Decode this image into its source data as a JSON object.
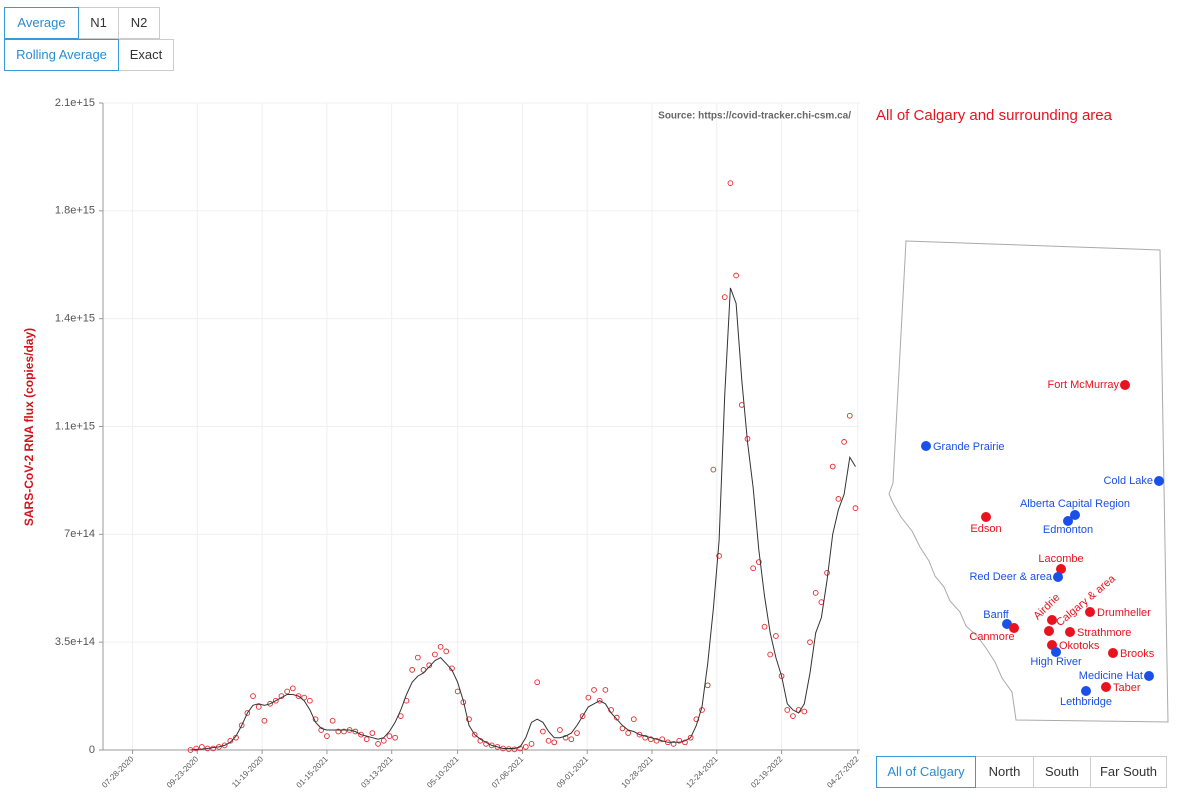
{
  "controls": {
    "signal": [
      "Average",
      "N1",
      "N2"
    ],
    "smoothing": [
      "Rolling Average",
      "Exact"
    ],
    "region": [
      "All of Calgary",
      "North",
      "South",
      "Far South"
    ]
  },
  "chart_data": {
    "type": "scatter",
    "source": "Source: https://covid-tracker.chi-csm.ca/",
    "subtitle": "All of Calgary and surrounding area",
    "y_label": "SARS-CoV-2 RNA flux (copies/day)",
    "xlim": [
      "07-02-2020",
      "04-29-2022"
    ],
    "xticks": [
      "07-28-2020",
      "09-23-2020",
      "11-19-2020",
      "01-15-2021",
      "03-13-2021",
      "05-10-2021",
      "07-06-2021",
      "09-01-2021",
      "10-28-2021",
      "12-24-2021",
      "02-19-2022",
      "04-27-2022"
    ],
    "ylim": [
      0,
      2100000000000000.0
    ],
    "yticks": [
      0,
      {
        "value": 350000000000000.0,
        "label": "3.5e+14"
      },
      {
        "value": 700000000000000.0,
        "label": "7e+14"
      },
      {
        "value": 1050000000000000.0,
        "label": "1.1e+15"
      },
      {
        "value": 1400000000000000.0,
        "label": "1.4e+15"
      },
      {
        "value": 1750000000000000.0,
        "label": "1.8e+15"
      },
      {
        "value": 2100000000000000.0,
        "label": "2.1e+15"
      }
    ],
    "grid": true,
    "x": [
      "09-17-2020",
      "09-22-2020",
      "09-27-2020",
      "10-02-2020",
      "10-07-2020",
      "10-12-2020",
      "10-17-2020",
      "10-22-2020",
      "10-27-2020",
      "11-01-2020",
      "11-06-2020",
      "11-11-2020",
      "11-16-2020",
      "11-21-2020",
      "11-26-2020",
      "12-01-2020",
      "12-06-2020",
      "12-11-2020",
      "12-16-2020",
      "12-21-2020",
      "12-26-2020",
      "12-31-2020",
      "01-05-2021",
      "01-10-2021",
      "01-15-2021",
      "01-20-2021",
      "01-25-2021",
      "01-30-2021",
      "02-04-2021",
      "02-09-2021",
      "02-14-2021",
      "02-19-2021",
      "02-24-2021",
      "03-01-2021",
      "03-06-2021",
      "03-11-2021",
      "03-16-2021",
      "03-21-2021",
      "03-26-2021",
      "03-31-2021",
      "04-05-2021",
      "04-10-2021",
      "04-15-2021",
      "04-20-2021",
      "04-25-2021",
      "04-30-2021",
      "05-05-2021",
      "05-10-2021",
      "05-15-2021",
      "05-20-2021",
      "05-25-2021",
      "05-30-2021",
      "06-04-2021",
      "06-09-2021",
      "06-14-2021",
      "06-19-2021",
      "06-24-2021",
      "06-29-2021",
      "07-04-2021",
      "07-09-2021",
      "07-14-2021",
      "07-19-2021",
      "07-24-2021",
      "07-29-2021",
      "08-03-2021",
      "08-08-2021",
      "08-13-2021",
      "08-18-2021",
      "08-23-2021",
      "08-28-2021",
      "09-02-2021",
      "09-07-2021",
      "09-12-2021",
      "09-17-2021",
      "09-22-2021",
      "09-27-2021",
      "10-02-2021",
      "10-07-2021",
      "10-12-2021",
      "10-17-2021",
      "10-22-2021",
      "10-27-2021",
      "11-01-2021",
      "11-06-2021",
      "11-11-2021",
      "11-16-2021",
      "11-21-2021",
      "11-26-2021",
      "12-01-2021",
      "12-06-2021",
      "12-11-2021",
      "12-16-2021",
      "12-21-2021",
      "12-26-2021",
      "12-31-2021",
      "01-05-2022",
      "01-10-2022",
      "01-15-2022",
      "01-20-2022",
      "01-25-2022",
      "01-30-2022",
      "02-04-2022",
      "02-09-2022",
      "02-14-2022",
      "02-19-2022",
      "02-24-2022",
      "03-01-2022",
      "03-06-2022",
      "03-11-2022",
      "03-16-2022",
      "03-21-2022",
      "03-26-2022",
      "03-31-2022",
      "04-05-2022",
      "04-10-2022",
      "04-15-2022",
      "04-20-2022",
      "04-25-2022"
    ],
    "series": [
      {
        "type": "scatter",
        "color": "#e8262b",
        "values": [
          0,
          5000000000000.0,
          10000000000000.0,
          5000000000000.0,
          5000000000000.0,
          10000000000000.0,
          15000000000000.0,
          30000000000000.0,
          40000000000000.0,
          80000000000000.0,
          120000000000000.0,
          175000000000000.0,
          140000000000000.0,
          95000000000000.0,
          150000000000000.0,
          160000000000000.0,
          175000000000000.0,
          190000000000000.0,
          200000000000000.0,
          175000000000000.0,
          170000000000000.0,
          160000000000000.0,
          100000000000000.0,
          65000000000000.0,
          45000000000000.0,
          95000000000000.0,
          60000000000000.0,
          60000000000000.0,
          65000000000000.0,
          60000000000000.0,
          50000000000000.0,
          35000000000000.0,
          55000000000000.0,
          20000000000000.0,
          30000000000000.0,
          45000000000000.0,
          40000000000000.0,
          110000000000000.0,
          160000000000000.0,
          260000000000000.0,
          300000000000000.0,
          260000000000000.0,
          275000000000000.0,
          310000000000000.0,
          335000000000000.0,
          320000000000000.0,
          265000000000000.0,
          190000000000000.0,
          155000000000000.0,
          100000000000000.0,
          50000000000000.0,
          30000000000000.0,
          20000000000000.0,
          15000000000000.0,
          10000000000000.0,
          5000000000000.0,
          3000000000000.0,
          2000000000000.0,
          5000000000000.0,
          10000000000000.0,
          20000000000000.0,
          220000000000000.0,
          60000000000000.0,
          30000000000000.0,
          25000000000000.0,
          65000000000000.0,
          40000000000000.0,
          35000000000000.0,
          55000000000000.0,
          110000000000000.0,
          170000000000000.0,
          195000000000000.0,
          160000000000000.0,
          195000000000000.0,
          130000000000000.0,
          105000000000000.0,
          70000000000000.0,
          55000000000000.0,
          100000000000000.0,
          50000000000000.0,
          40000000000000.0,
          35000000000000.0,
          30000000000000.0,
          35000000000000.0,
          25000000000000.0,
          20000000000000.0,
          30000000000000.0,
          25000000000000.0,
          40000000000000.0,
          100000000000000.0,
          130000000000000.0,
          210000000000000.0,
          910000000000000.0,
          630000000000000.0,
          1470000000000000.0,
          1840000000000000.0,
          1540000000000000.0,
          1120000000000000.0,
          1010000000000000.0,
          590000000000000.0,
          610000000000000.0,
          400000000000000.0,
          310000000000000.0,
          370000000000000.0,
          240000000000000.0,
          130000000000000.0,
          110000000000000.0,
          130000000000000.0,
          125000000000000.0,
          350000000000000.0,
          510000000000000.0,
          480000000000000.0,
          575000000000000.0,
          920000000000000.0,
          815000000000000.0,
          1000000000000000.0,
          1085000000000000.0,
          785000000000000.0
        ]
      },
      {
        "type": "line",
        "color": "#333333",
        "values": [
          0,
          2000000000000.0,
          3000000000000.0,
          5000000000000.0,
          8000000000000.0,
          10000000000000.0,
          15000000000000.0,
          25000000000000.0,
          45000000000000.0,
          80000000000000.0,
          120000000000000.0,
          145000000000000.0,
          150000000000000.0,
          145000000000000.0,
          150000000000000.0,
          160000000000000.0,
          170000000000000.0,
          180000000000000.0,
          180000000000000.0,
          175000000000000.0,
          160000000000000.0,
          130000000000000.0,
          90000000000000.0,
          70000000000000.0,
          65000000000000.0,
          65000000000000.0,
          65000000000000.0,
          65000000000000.0,
          65000000000000.0,
          60000000000000.0,
          50000000000000.0,
          45000000000000.0,
          40000000000000.0,
          35000000000000.0,
          40000000000000.0,
          60000000000000.0,
          90000000000000.0,
          130000000000000.0,
          180000000000000.0,
          220000000000000.0,
          240000000000000.0,
          250000000000000.0,
          270000000000000.0,
          290000000000000.0,
          300000000000000.0,
          280000000000000.0,
          260000000000000.0,
          220000000000000.0,
          160000000000000.0,
          80000000000000.0,
          50000000000000.0,
          35000000000000.0,
          25000000000000.0,
          15000000000000.0,
          10000000000000.0,
          5000000000000.0,
          5000000000000.0,
          5000000000000.0,
          10000000000000.0,
          40000000000000.0,
          90000000000000.0,
          100000000000000.0,
          90000000000000.0,
          60000000000000.0,
          40000000000000.0,
          40000000000000.0,
          45000000000000.0,
          55000000000000.0,
          80000000000000.0,
          110000000000000.0,
          140000000000000.0,
          150000000000000.0,
          160000000000000.0,
          150000000000000.0,
          120000000000000.0,
          100000000000000.0,
          80000000000000.0,
          65000000000000.0,
          60000000000000.0,
          50000000000000.0,
          45000000000000.0,
          40000000000000.0,
          35000000000000.0,
          30000000000000.0,
          25000000000000.0,
          25000000000000.0,
          25000000000000.0,
          30000000000000.0,
          40000000000000.0,
          80000000000000.0,
          140000000000000.0,
          280000000000000.0,
          460000000000000.0,
          680000000000000.0,
          1150000000000000.0,
          1500000000000000.0,
          1450000000000000.0,
          1200000000000000.0,
          1000000000000000.0,
          850000000000000.0,
          650000000000000.0,
          500000000000000.0,
          380000000000000.0,
          300000000000000.0,
          240000000000000.0,
          150000000000000.0,
          130000000000000.0,
          120000000000000.0,
          150000000000000.0,
          250000000000000.0,
          380000000000000.0,
          430000000000000.0,
          550000000000000.0,
          700000000000000.0,
          780000000000000.0,
          830000000000000.0,
          950000000000000.0,
          920000000000000.0
        ]
      }
    ]
  },
  "map": {
    "sites": [
      {
        "name": "Fort McMurray",
        "color": "#e8131f"
      },
      {
        "name": "Grande Prairie",
        "color": "#1a4fe8"
      },
      {
        "name": "Cold Lake",
        "color": "#1a4fe8"
      },
      {
        "name": "Alberta Capital Region",
        "color": "#1a4fe8"
      },
      {
        "name": "Edmonton",
        "color": "#1a4fe8"
      },
      {
        "name": "Edson",
        "color": "#e8131f"
      },
      {
        "name": "Lacombe",
        "color": "#e8131f"
      },
      {
        "name": "Red Deer & area",
        "color": "#1a4fe8"
      },
      {
        "name": "Banff",
        "color": "#1a4fe8"
      },
      {
        "name": "Canmore",
        "color": "#e8131f"
      },
      {
        "name": "Airdrie",
        "color": "#e8131f"
      },
      {
        "name": "Calgary & area",
        "color": "#e8131f"
      },
      {
        "name": "Drumheller",
        "color": "#e8131f"
      },
      {
        "name": "Strathmore",
        "color": "#e8131f"
      },
      {
        "name": "Okotoks",
        "color": "#e8131f"
      },
      {
        "name": "High River",
        "color": "#1a4fe8"
      },
      {
        "name": "Brooks",
        "color": "#e8131f"
      },
      {
        "name": "Medicine Hat",
        "color": "#1a4fe8"
      },
      {
        "name": "Taber",
        "color": "#e8131f"
      },
      {
        "name": "Lethbridge",
        "color": "#1a4fe8"
      }
    ]
  }
}
